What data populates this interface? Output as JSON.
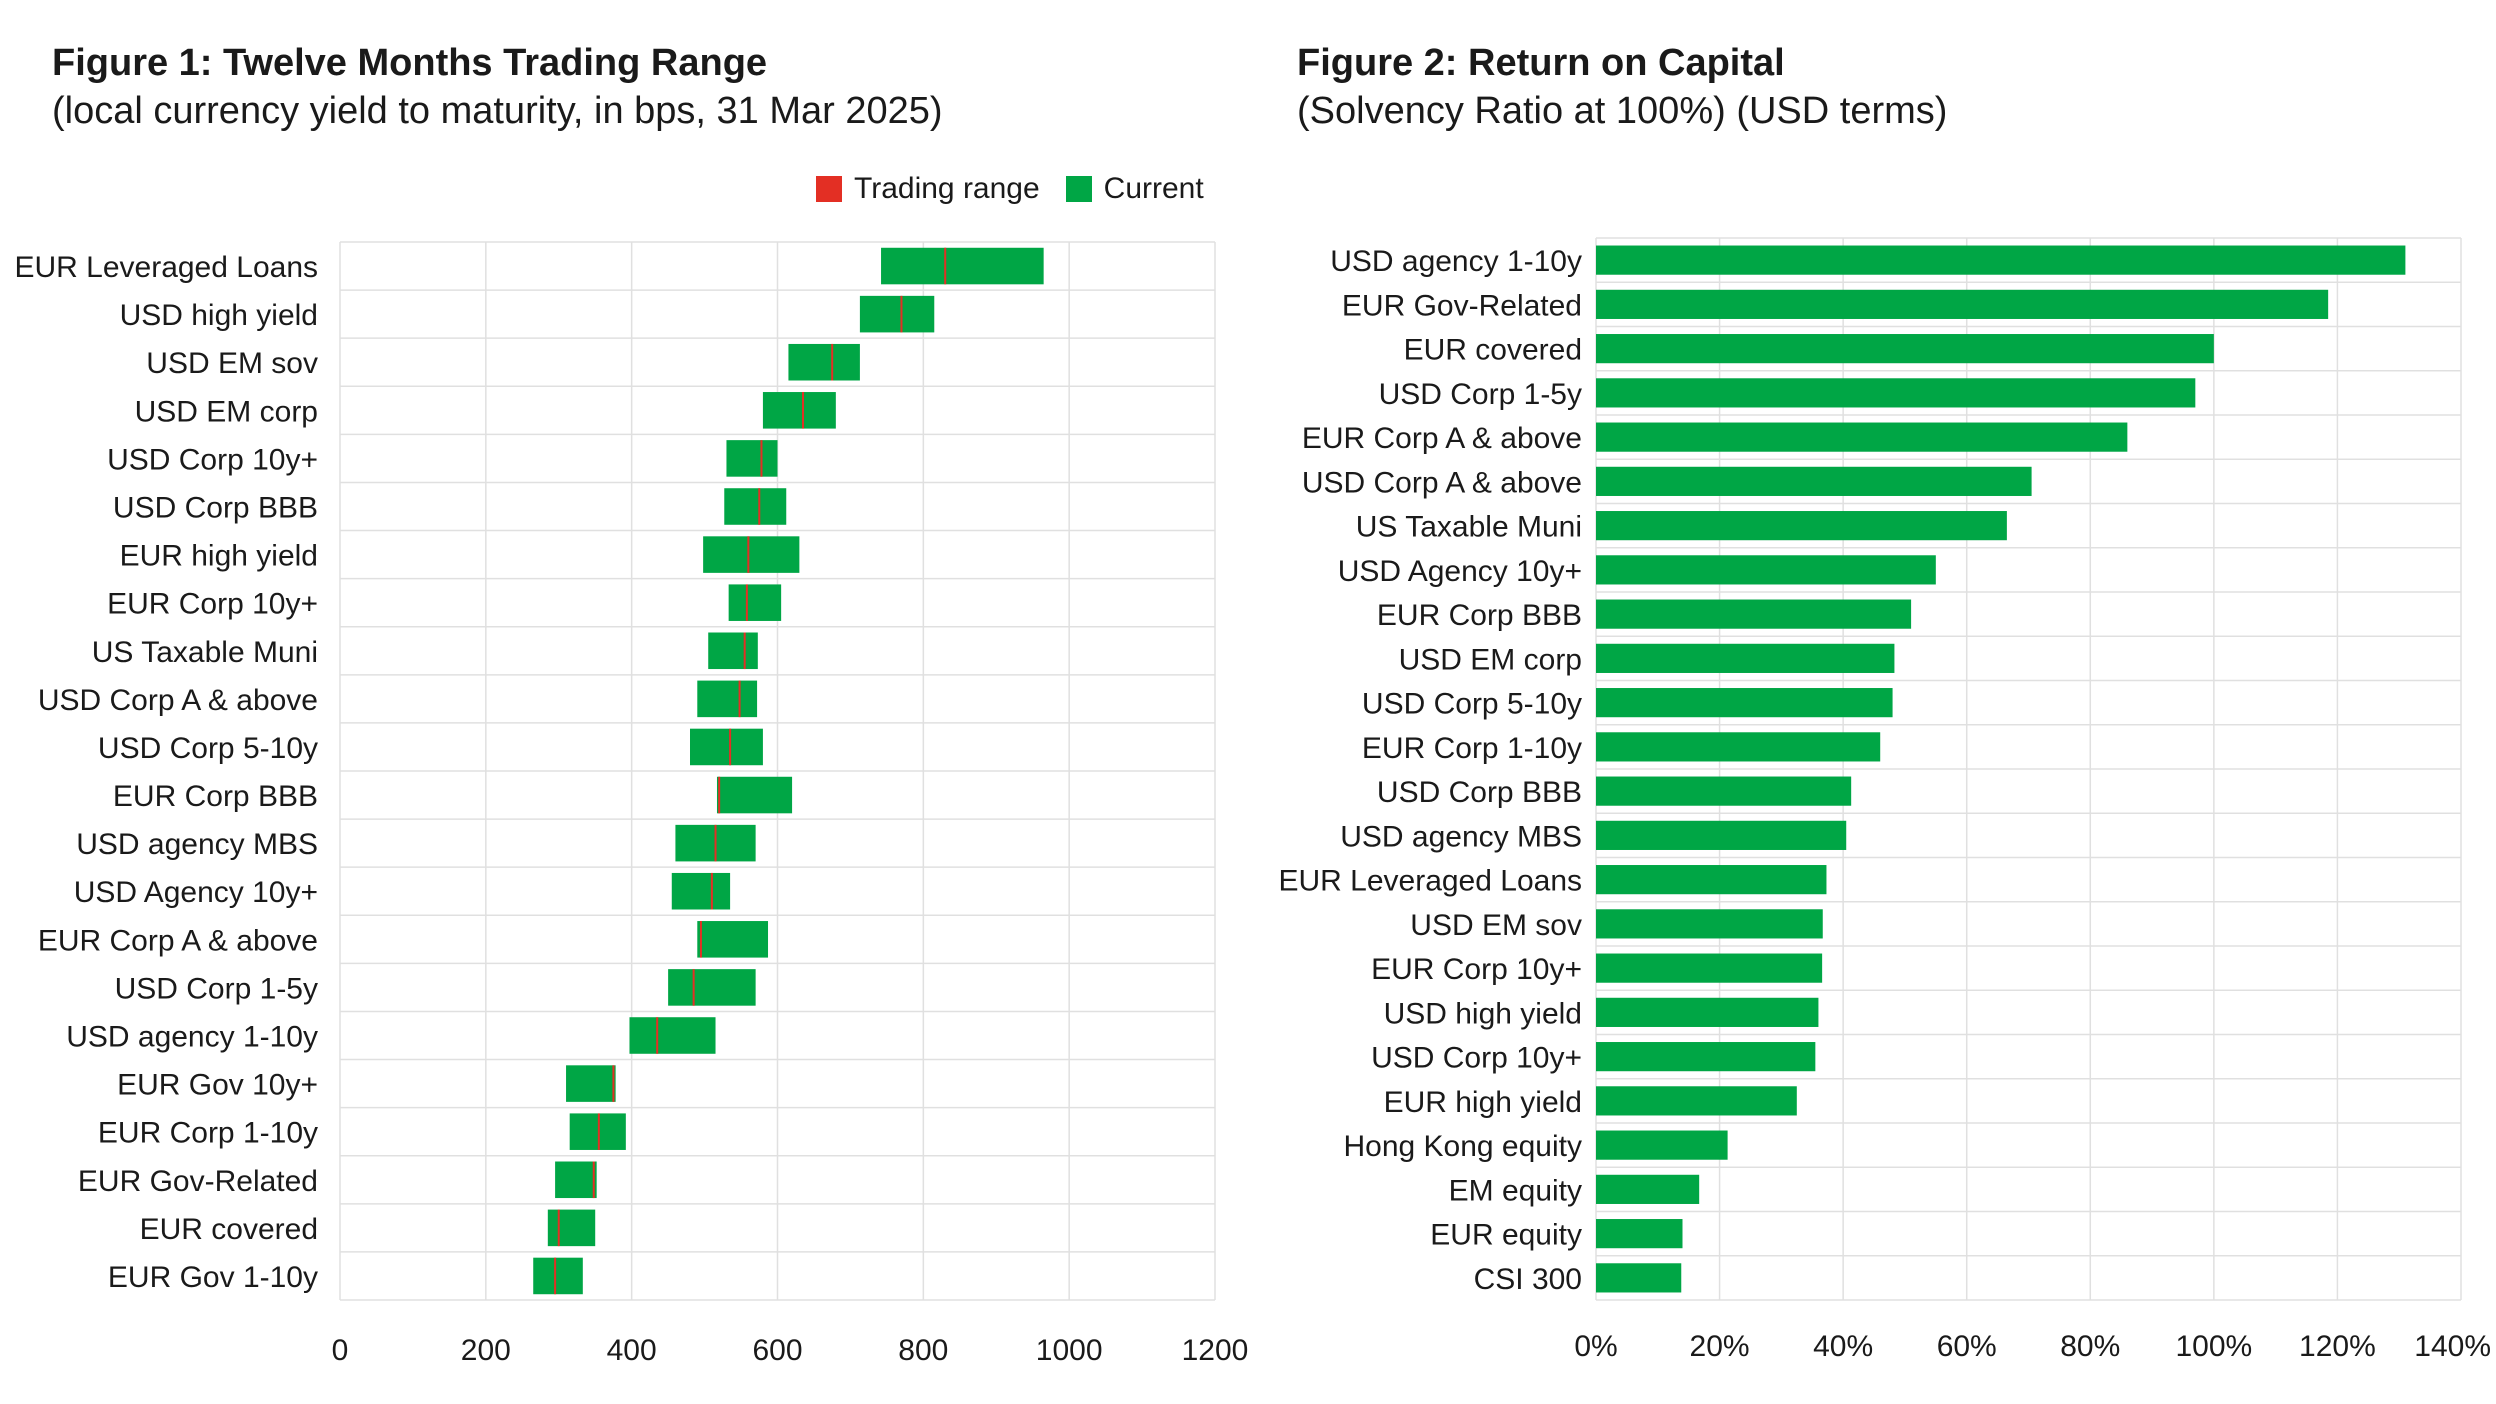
{
  "colors": {
    "bar": "#00a645",
    "range_marker": "#e32f24",
    "grid": "#e0e0e0",
    "text": "#1a1a1a"
  },
  "figure1": {
    "title": "Figure 1: Twelve Months Trading Range",
    "subtitle": "(local currency yield to maturity, in bps, 31 Mar 2025)",
    "legend": [
      {
        "label": "Trading range",
        "color": "#e32f24"
      },
      {
        "label": "Current",
        "color": "#00a645"
      }
    ]
  },
  "figure2": {
    "title": "Figure 2: Return on Capital",
    "subtitle": "(Solvency Ratio at 100%) (USD terms)"
  },
  "chart_data": [
    {
      "type": "bar",
      "orientation": "horizontal-range",
      "xlim": [
        0,
        1200
      ],
      "xticks": [
        "0",
        "200",
        "400",
        "600",
        "800",
        "1000",
        "1200"
      ],
      "grid": true,
      "legend_position": "top-right",
      "categories": [
        "EUR Leveraged Loans",
        "USD high yield",
        "USD EM sov",
        "USD EM corp",
        "USD Corp 10y+",
        "USD Corp BBB",
        "EUR high yield",
        "EUR Corp 10y+",
        "US Taxable Muni",
        "USD Corp A & above",
        "USD Corp 5-10y",
        "EUR Corp BBB",
        "USD agency MBS",
        "USD Agency 10y+",
        "EUR Corp A & above",
        "USD Corp 1-5y",
        "USD agency 1-10y",
        "EUR Gov 10y+",
        "EUR Corp 1-10y",
        "EUR Gov-Related",
        "EUR covered",
        "EUR Gov 1-10y"
      ],
      "series": [
        {
          "name": "Trading range",
          "low": [
            742,
            713,
            615,
            580,
            530,
            527,
            498,
            533,
            505,
            490,
            480,
            517,
            460,
            455,
            490,
            450,
            397,
            310,
            315,
            295,
            285,
            265
          ],
          "high": [
            965,
            815,
            713,
            680,
            600,
            612,
            630,
            605,
            573,
            572,
            580,
            620,
            570,
            535,
            587,
            570,
            515,
            378,
            392,
            352,
            350,
            333
          ]
        },
        {
          "name": "Current",
          "values": [
            830,
            770,
            675,
            635,
            578,
            575,
            560,
            558,
            555,
            548,
            535,
            520,
            515,
            510,
            495,
            485,
            435,
            375,
            355,
            348,
            300,
            295
          ]
        }
      ]
    },
    {
      "type": "bar",
      "orientation": "horizontal",
      "xlim": [
        0,
        140
      ],
      "xticks": [
        "0%",
        "20%",
        "40%",
        "60%",
        "80%",
        "100%",
        "120%",
        "140%"
      ],
      "grid": true,
      "categories": [
        "USD agency 1-10y",
        "EUR Gov-Related",
        "EUR covered",
        "USD Corp 1-5y",
        "EUR Corp A & above",
        "USD Corp A & above",
        "US Taxable Muni",
        "USD Agency 10y+",
        "EUR Corp BBB",
        "USD EM corp",
        "USD Corp 5-10y",
        "EUR Corp 1-10y",
        "USD Corp BBB",
        "USD agency MBS",
        "EUR Leveraged Loans",
        "USD EM sov",
        "EUR Corp 10y+",
        "USD high yield",
        "USD Corp 10y+",
        "EUR high yield",
        "Hong Kong equity",
        "EM equity",
        "EUR equity",
        "CSI 300"
      ],
      "values": [
        131,
        118.5,
        100,
        97,
        86,
        70.5,
        66.5,
        55,
        51,
        48.3,
        48,
        46,
        41.3,
        40.5,
        37.3,
        36.7,
        36.6,
        36,
        35.5,
        32.5,
        21.3,
        16.7,
        14,
        13.8
      ]
    }
  ]
}
